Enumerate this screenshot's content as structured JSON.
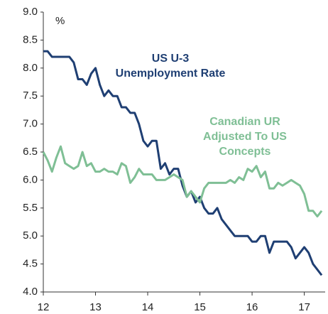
{
  "chart_data": {
    "type": "line",
    "y_label": "%",
    "x": [
      12,
      12.083,
      12.167,
      12.25,
      12.333,
      12.417,
      12.5,
      12.583,
      12.667,
      12.75,
      12.833,
      12.917,
      13,
      13.083,
      13.167,
      13.25,
      13.333,
      13.417,
      13.5,
      13.583,
      13.667,
      13.75,
      13.833,
      13.917,
      14,
      14.083,
      14.167,
      14.25,
      14.333,
      14.417,
      14.5,
      14.583,
      14.667,
      14.75,
      14.833,
      14.917,
      15,
      15.083,
      15.167,
      15.25,
      15.333,
      15.417,
      15.5,
      15.583,
      15.667,
      15.75,
      15.833,
      15.917,
      16,
      16.083,
      16.167,
      16.25,
      16.333,
      16.417,
      16.5,
      16.583,
      16.667,
      16.75,
      16.833,
      16.917,
      17,
      17.083,
      17.167,
      17.25,
      17.333
    ],
    "series": [
      {
        "name": [
          "US U-3",
          "Unemployment Rate"
        ],
        "color": "#1f3f73",
        "values": [
          8.3,
          8.3,
          8.2,
          8.2,
          8.2,
          8.2,
          8.2,
          8.1,
          7.8,
          7.8,
          7.7,
          7.9,
          8.0,
          7.7,
          7.5,
          7.6,
          7.5,
          7.5,
          7.3,
          7.3,
          7.2,
          7.2,
          7.0,
          6.7,
          6.6,
          6.7,
          6.7,
          6.2,
          6.3,
          6.1,
          6.2,
          6.2,
          5.9,
          5.7,
          5.8,
          5.6,
          5.7,
          5.5,
          5.4,
          5.4,
          5.5,
          5.3,
          5.2,
          5.1,
          5.0,
          5.0,
          5.0,
          5.0,
          4.9,
          4.9,
          5.0,
          5.0,
          4.7,
          4.9,
          4.9,
          4.9,
          4.9,
          4.8,
          4.6,
          4.7,
          4.8,
          4.7,
          4.5,
          4.4,
          4.3
        ]
      },
      {
        "name": [
          "Canadian UR",
          "Adjusted To US",
          "Concepts"
        ],
        "color": "#7fbf95",
        "values": [
          6.5,
          6.35,
          6.15,
          6.4,
          6.6,
          6.3,
          6.25,
          6.2,
          6.25,
          6.5,
          6.25,
          6.3,
          6.15,
          6.15,
          6.2,
          6.15,
          6.15,
          6.1,
          6.3,
          6.25,
          5.95,
          6.05,
          6.2,
          6.1,
          6.1,
          6.1,
          6.0,
          6.0,
          6.0,
          6.05,
          6.1,
          6.05,
          6.0,
          5.7,
          5.8,
          5.7,
          5.6,
          5.85,
          5.95,
          5.95,
          5.95,
          5.95,
          5.95,
          6.0,
          5.95,
          6.05,
          6.0,
          6.2,
          6.15,
          6.25,
          6.05,
          6.15,
          5.85,
          5.85,
          5.95,
          5.9,
          5.95,
          6.0,
          5.95,
          5.9,
          5.75,
          5.45,
          5.45,
          5.35,
          5.45
        ]
      }
    ],
    "xlim": [
      12,
      17.4
    ],
    "xticks": [
      12,
      13,
      14,
      15,
      16,
      17
    ],
    "ylim": [
      4,
      9
    ],
    "yticks": [
      {
        "value": 4,
        "label": "4.0"
      },
      {
        "value": 4.5,
        "label": "4.5"
      },
      {
        "value": 5,
        "label": "5.0"
      },
      {
        "value": 5.5,
        "label": "5.5"
      },
      {
        "value": 6,
        "label": "6.0"
      },
      {
        "value": 6.5,
        "label": "6.5"
      },
      {
        "value": 7,
        "label": "7.0"
      },
      {
        "value": 7.5,
        "label": "7.5"
      },
      {
        "value": 8,
        "label": "8.0"
      },
      {
        "value": 8.5,
        "label": "8.5"
      },
      {
        "value": 9,
        "label": "9.0"
      }
    ],
    "grid": false
  }
}
